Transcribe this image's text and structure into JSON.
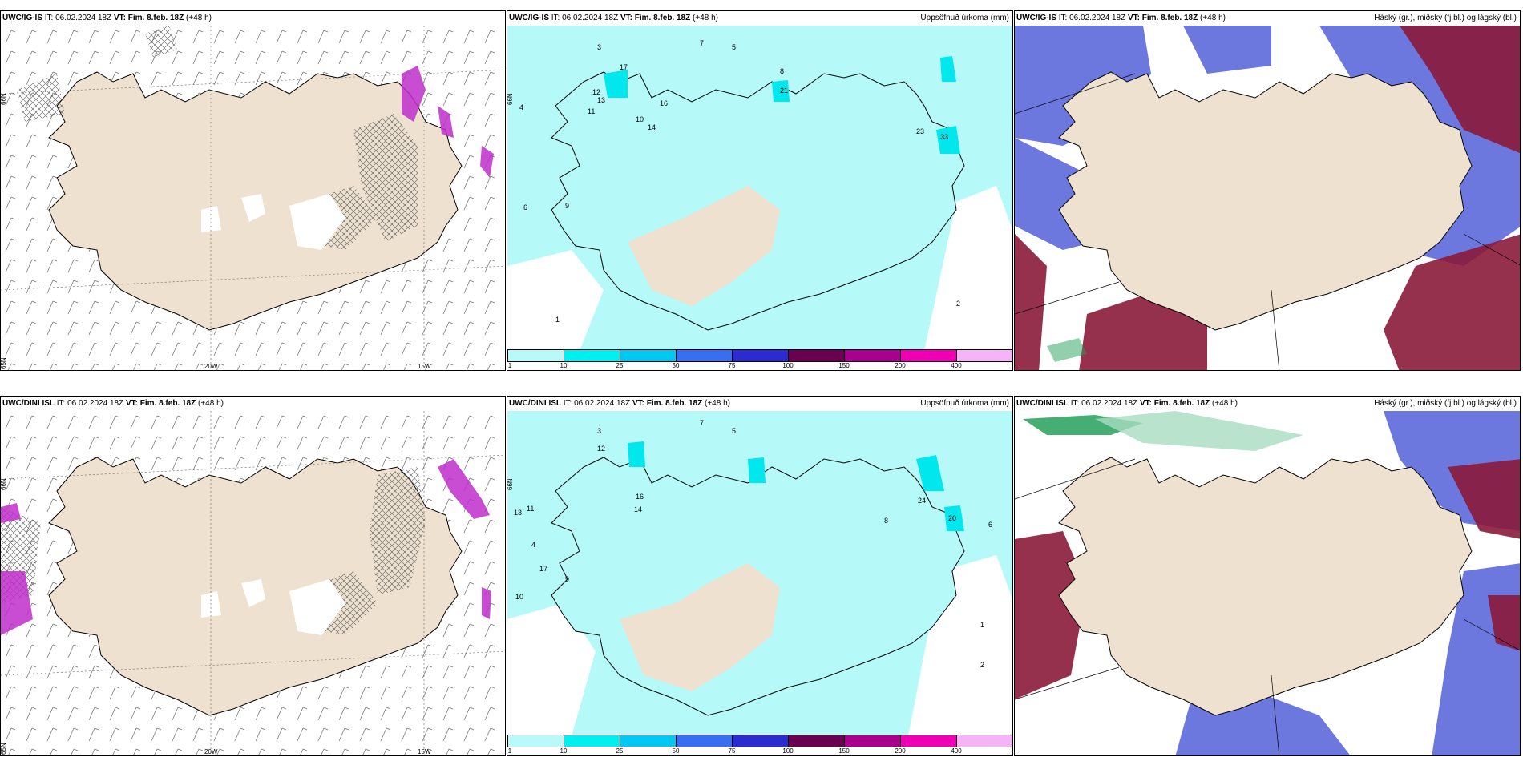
{
  "panels": [
    {
      "id": "top-left",
      "model": "UWC/IG-IS",
      "it_label": "IT:",
      "it_value": "06.02.2024 18Z",
      "vt_label": "VT:",
      "vt_value": "Fim. 8.feb. 18Z",
      "lead": "(+48 h)",
      "field": "",
      "axis_labels": {
        "lat66": "66N",
        "lat65": "65N",
        "lon20": "20W",
        "lon15": "15W"
      }
    },
    {
      "id": "top-middle",
      "model": "UWC/IG-IS",
      "it_label": "IT:",
      "it_value": "06.02.2024 18Z",
      "vt_label": "VT:",
      "vt_value": "Fim. 8.feb. 18Z",
      "lead": "(+48 h)",
      "field": "Uppsöfnuð úrkoma (mm)",
      "axis_labels": {
        "lat66": "66N"
      },
      "precip_values": [
        "7",
        "5",
        "3",
        "17",
        "16",
        "13",
        "12",
        "11",
        "10",
        "9",
        "8",
        "14",
        "21",
        "23",
        "33",
        "4",
        "6",
        "2",
        "1"
      ]
    },
    {
      "id": "top-right",
      "model": "UWC/IG-IS",
      "it_label": "IT:",
      "it_value": "06.02.2024 18Z",
      "vt_label": "VT:",
      "vt_value": "Fim. 8.feb. 18Z",
      "lead": "(+48 h)",
      "field": "Háský (gr.), miðský (fj.bl.) og lágský (bl.)"
    },
    {
      "id": "bottom-left",
      "model": "UWC/DINI ISL",
      "it_label": "IT:",
      "it_value": "06.02.2024 18Z",
      "vt_label": "VT:",
      "vt_value": "Fim. 8.feb. 18Z",
      "lead": "(+48 h)",
      "field": "",
      "axis_labels": {
        "lat66": "66N",
        "lat65": "65N",
        "lon20": "20W",
        "lon15": "15W"
      }
    },
    {
      "id": "bottom-middle",
      "model": "UWC/DINI ISL",
      "it_label": "IT:",
      "it_value": "06.02.2024 18Z",
      "vt_label": "VT:",
      "vt_value": "Fim. 8.feb. 18Z",
      "lead": "(+48 h)",
      "field": "Uppsöfnuð úrkoma (mm)",
      "axis_labels": {
        "lat66": "66N"
      },
      "precip_values": [
        "7",
        "5",
        "3",
        "17",
        "16",
        "13",
        "12",
        "11",
        "10",
        "9",
        "8",
        "14",
        "20",
        "24",
        "4",
        "6",
        "2",
        "1"
      ]
    },
    {
      "id": "bottom-right",
      "model": "UWC/DINI ISL",
      "it_label": "IT:",
      "it_value": "06.02.2024 18Z",
      "vt_label": "VT:",
      "vt_value": "Fim. 8.feb. 18Z",
      "lead": "(+48 h)",
      "field": "Háský (gr.), miðský (fj.bl.) og lágský (bl.)"
    }
  ],
  "colorbar": {
    "ticks": [
      "1",
      "10",
      "25",
      "50",
      "75",
      "100",
      "150",
      "200",
      "400"
    ],
    "colors": [
      "#b8fafa",
      "#00f0f0",
      "#00c8f0",
      "#3a6ef0",
      "#2b2bd0",
      "#6a0050",
      "#a8008c",
      "#f000b4",
      "#f5b4f5"
    ]
  },
  "colors": {
    "land": "#eee1cf",
    "precip_light": "#b6f9f9",
    "precip_medium": "#00e8ee",
    "precip_heavy": "#c02ecb",
    "cloud_high": "#26a05a",
    "cloud_mid": "#5460d8",
    "cloud_low": "#8a1a3a"
  }
}
